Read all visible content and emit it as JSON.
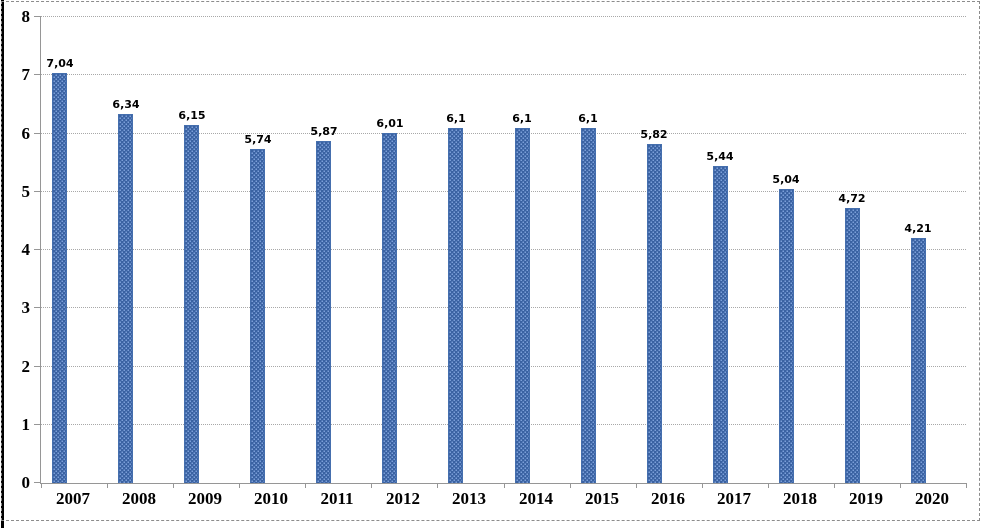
{
  "chart_data": {
    "type": "bar",
    "title": "",
    "xlabel": "",
    "ylabel": "",
    "categories": [
      "2007",
      "2008",
      "2009",
      "2010",
      "2011",
      "2012",
      "2013",
      "2014",
      "2015",
      "2016",
      "2017",
      "2018",
      "2019",
      "2020"
    ],
    "values": [
      7.04,
      6.34,
      6.15,
      5.74,
      5.87,
      6.01,
      6.1,
      6.1,
      6.1,
      5.82,
      5.44,
      5.04,
      4.72,
      4.21
    ],
    "value_labels": [
      "7,04",
      "6,34",
      "6,15",
      "5,74",
      "5,87",
      "6,01",
      "6,1",
      "6,1",
      "6,1",
      "5,82",
      "5,44",
      "5,04",
      "4,72",
      "4,21"
    ],
    "ylim": [
      0,
      8
    ],
    "yticks": [
      "0",
      "1",
      "2",
      "3",
      "4",
      "5",
      "6",
      "7",
      "8"
    ],
    "grid": "horizontal-dotted",
    "legend": "none",
    "colors": {
      "bar_base": "#7b9fd9",
      "bar_dot": "#3a62a2",
      "bar_border": "#456fae",
      "axis": "#969696",
      "gridline": "#a8a8a8",
      "text": "#000000",
      "frame_dashed": "#8c8c8c",
      "left_edge": "#000000"
    }
  }
}
